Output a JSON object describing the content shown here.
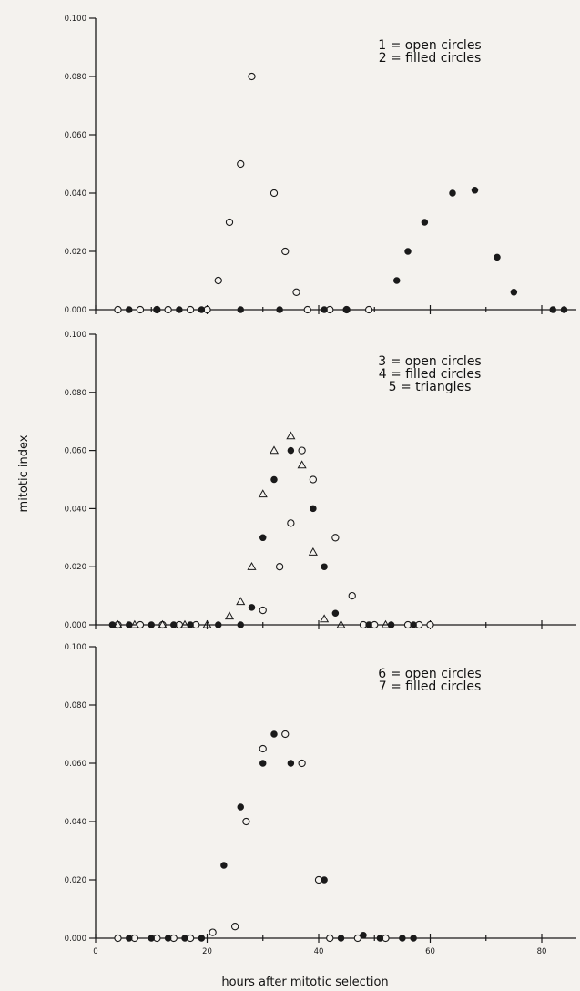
{
  "figure": {
    "ylabel": "mitotic index",
    "xlabel": "hours after mitotic selection"
  },
  "chart_data": [
    {
      "type": "scatter",
      "xlim": [
        0,
        85
      ],
      "ylim": [
        0,
        0.1
      ],
      "yticks": [
        "0.000",
        "0.020",
        "0.040",
        "0.060",
        "0.080",
        "0.100"
      ],
      "legend": [
        "1 = open circles",
        "2 = filled circles"
      ],
      "legend_placement": "top-right",
      "series": [
        {
          "marker": "open-circle",
          "points": [
            [
              4,
              0
            ],
            [
              8,
              0
            ],
            [
              11,
              0
            ],
            [
              13,
              0
            ],
            [
              17,
              0
            ],
            [
              20,
              0
            ],
            [
              22,
              0.01
            ],
            [
              24,
              0.03
            ],
            [
              26,
              0.05
            ],
            [
              28,
              0.08
            ],
            [
              32,
              0.04
            ],
            [
              34,
              0.02
            ],
            [
              36,
              0.006
            ],
            [
              38,
              0
            ],
            [
              42,
              0
            ],
            [
              45,
              0
            ],
            [
              49,
              0
            ]
          ]
        },
        {
          "marker": "filled-circle",
          "points": [
            [
              6,
              0
            ],
            [
              11,
              0
            ],
            [
              15,
              0
            ],
            [
              19,
              0
            ],
            [
              26,
              0
            ],
            [
              33,
              0
            ],
            [
              41,
              0
            ],
            [
              45,
              0
            ],
            [
              54,
              0.01
            ],
            [
              56,
              0.02
            ],
            [
              59,
              0.03
            ],
            [
              64,
              0.04
            ],
            [
              68,
              0.041
            ],
            [
              72,
              0.018
            ],
            [
              75,
              0.006
            ],
            [
              82,
              0
            ],
            [
              84,
              0
            ]
          ]
        }
      ]
    },
    {
      "type": "scatter",
      "xlim": [
        0,
        85
      ],
      "ylim": [
        0,
        0.1
      ],
      "yticks": [
        "0.000",
        "0.020",
        "0.040",
        "0.060",
        "0.080",
        "0.100"
      ],
      "legend": [
        "3 = open circles",
        "4 = filled circles",
        "5 = triangles"
      ],
      "legend_placement": "top-right",
      "series": [
        {
          "marker": "open-circle",
          "points": [
            [
              4,
              0
            ],
            [
              8,
              0
            ],
            [
              12,
              0
            ],
            [
              15,
              0
            ],
            [
              18,
              0
            ],
            [
              30,
              0.005
            ],
            [
              33,
              0.02
            ],
            [
              35,
              0.035
            ],
            [
              37,
              0.06
            ],
            [
              39,
              0.05
            ],
            [
              43,
              0.03
            ],
            [
              46,
              0.01
            ],
            [
              48,
              0
            ],
            [
              50,
              0
            ],
            [
              56,
              0
            ],
            [
              58,
              0
            ],
            [
              60,
              0
            ]
          ]
        },
        {
          "marker": "filled-circle",
          "points": [
            [
              3,
              0
            ],
            [
              6,
              0
            ],
            [
              10,
              0
            ],
            [
              14,
              0
            ],
            [
              17,
              0
            ],
            [
              22,
              0
            ],
            [
              26,
              0
            ],
            [
              28,
              0.006
            ],
            [
              30,
              0.03
            ],
            [
              32,
              0.05
            ],
            [
              35,
              0.06
            ],
            [
              39,
              0.04
            ],
            [
              41,
              0.02
            ],
            [
              43,
              0.004
            ],
            [
              49,
              0
            ],
            [
              53,
              0
            ],
            [
              57,
              0
            ]
          ]
        },
        {
          "marker": "triangle",
          "points": [
            [
              4,
              0
            ],
            [
              7,
              0
            ],
            [
              12,
              0
            ],
            [
              16,
              0
            ],
            [
              20,
              0
            ],
            [
              24,
              0.003
            ],
            [
              26,
              0.008
            ],
            [
              28,
              0.02
            ],
            [
              30,
              0.045
            ],
            [
              32,
              0.06
            ],
            [
              35,
              0.065
            ],
            [
              37,
              0.055
            ],
            [
              39,
              0.025
            ],
            [
              41,
              0.002
            ],
            [
              44,
              0
            ],
            [
              52,
              0
            ]
          ]
        }
      ]
    },
    {
      "type": "scatter",
      "xlim": [
        0,
        85
      ],
      "ylim": [
        0,
        0.1
      ],
      "yticks": [
        "0.000",
        "0.020",
        "0.040",
        "0.060",
        "0.080",
        "0.100"
      ],
      "xticks": [
        "0",
        "20",
        "40",
        "60",
        "80"
      ],
      "legend": [
        "6 = open circles",
        "7 = filled circles"
      ],
      "legend_placement": "top-right",
      "series": [
        {
          "marker": "open-circle",
          "points": [
            [
              4,
              0
            ],
            [
              7,
              0
            ],
            [
              11,
              0
            ],
            [
              14,
              0
            ],
            [
              17,
              0
            ],
            [
              21,
              0.002
            ],
            [
              25,
              0.004
            ],
            [
              27,
              0.04
            ],
            [
              30,
              0.065
            ],
            [
              34,
              0.07
            ],
            [
              37,
              0.06
            ],
            [
              40,
              0.02
            ],
            [
              42,
              0
            ],
            [
              47,
              0
            ],
            [
              52,
              0
            ]
          ]
        },
        {
          "marker": "filled-circle",
          "points": [
            [
              6,
              0
            ],
            [
              10,
              0
            ],
            [
              13,
              0
            ],
            [
              16,
              0
            ],
            [
              19,
              0
            ],
            [
              23,
              0.025
            ],
            [
              26,
              0.045
            ],
            [
              30,
              0.06
            ],
            [
              32,
              0.07
            ],
            [
              35,
              0.06
            ],
            [
              41,
              0.02
            ],
            [
              44,
              0
            ],
            [
              48,
              0.001
            ],
            [
              51,
              0
            ],
            [
              55,
              0
            ],
            [
              57,
              0
            ]
          ]
        }
      ]
    }
  ]
}
